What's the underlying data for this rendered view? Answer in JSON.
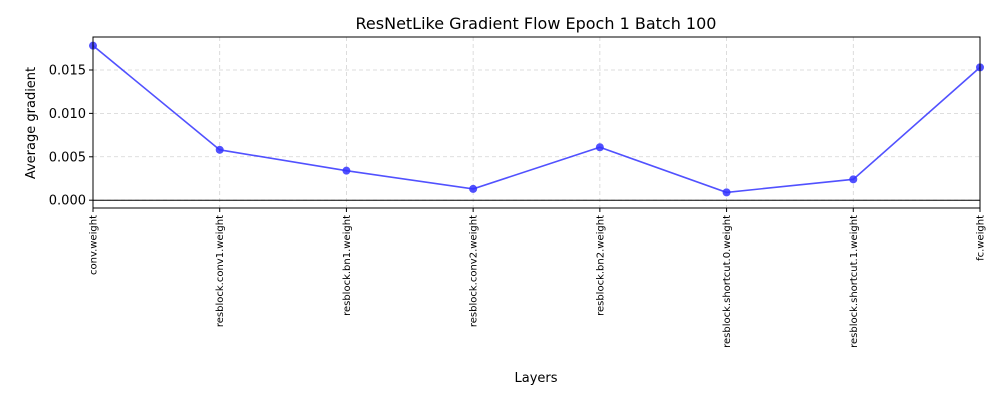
{
  "chart_data": {
    "type": "line",
    "title": "ResNetLike Gradient Flow Epoch 1 Batch 100",
    "xlabel": "Layers",
    "ylabel": "Average gradient",
    "categories": [
      "conv.weight",
      "resblock.conv1.weight",
      "resblock.bn1.weight",
      "resblock.conv2.weight",
      "resblock.bn2.weight",
      "resblock.shortcut.0.weight",
      "resblock.shortcut.1.weight",
      "fc.weight"
    ],
    "series": [
      {
        "values": [
          0.0178,
          0.0058,
          0.0034,
          0.0013,
          0.0061,
          0.0009,
          0.0024,
          0.0153
        ],
        "color": "#3333ff"
      }
    ],
    "ylim": [
      -0.0009,
      0.0188
    ],
    "yticks": [
      0.0,
      0.005,
      0.01,
      0.015
    ],
    "ytick_labels": [
      "0.000",
      "0.005",
      "0.010",
      "0.015"
    ],
    "grid": true,
    "zero_line": true,
    "markers": true
  }
}
